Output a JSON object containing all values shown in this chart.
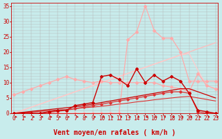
{
  "xlabel": "Vent moyen/en rafales ( km/h )",
  "background_color": "#c8ecec",
  "grid_color": "#b0b0b0",
  "x_labels": [
    "0",
    "1",
    "2",
    "3",
    "4",
    "5",
    "6",
    "7",
    "8",
    "9",
    "10",
    "11",
    "12",
    "13",
    "14",
    "15",
    "16",
    "17",
    "18",
    "19",
    "20",
    "21",
    "22",
    "23"
  ],
  "ylim": [
    0,
    36
  ],
  "xlim": [
    -0.3,
    23.3
  ],
  "yticks": [
    0,
    5,
    10,
    15,
    20,
    25,
    30,
    35
  ],
  "series": [
    {
      "x": [
        0,
        1,
        2,
        3,
        4,
        5,
        6,
        7,
        8,
        9,
        10,
        11,
        12,
        13,
        14,
        15,
        16,
        17,
        18,
        19,
        20,
        21,
        22,
        23
      ],
      "y": [
        0,
        0,
        0,
        0,
        0,
        0,
        0,
        0,
        0,
        0,
        0,
        0,
        0,
        24,
        26.5,
        35,
        27,
        24.5,
        24.5,
        20,
        10.5,
        10.5,
        10.5,
        10.5
      ],
      "color": "#ffaaaa",
      "lw": 0.9,
      "marker": "D",
      "markersize": 2.0,
      "zorder": 2
    },
    {
      "x": [
        0,
        1,
        2,
        3,
        4,
        5,
        6,
        7,
        8,
        9,
        10,
        11,
        12,
        13,
        14,
        15,
        16,
        17,
        18,
        19,
        20,
        21,
        22,
        23
      ],
      "y": [
        0,
        1,
        2,
        3,
        4,
        5,
        6,
        7,
        8,
        9,
        10,
        11,
        12,
        13,
        14,
        15,
        16,
        17,
        18,
        19,
        20,
        21,
        22,
        23
      ],
      "color": "#ffbbbb",
      "lw": 0.9,
      "marker": null,
      "markersize": 0,
      "zorder": 1
    },
    {
      "x": [
        0,
        1,
        2,
        3,
        4,
        5,
        6,
        7,
        8,
        9,
        10,
        11,
        12,
        13,
        14,
        15,
        16,
        17,
        18,
        19,
        20,
        21,
        22,
        23
      ],
      "y": [
        6,
        7,
        8,
        9,
        10,
        11,
        12,
        11,
        10.5,
        10,
        10.5,
        10,
        10,
        10,
        10,
        10,
        10,
        9,
        8.5,
        8,
        7,
        13,
        9,
        8
      ],
      "color": "#ffaaaa",
      "lw": 0.9,
      "marker": "D",
      "markersize": 2.0,
      "zorder": 2
    },
    {
      "x": [
        0,
        1,
        2,
        3,
        4,
        5,
        6,
        7,
        8,
        9,
        10,
        11,
        12,
        13,
        14,
        15,
        16,
        17,
        18,
        19,
        20,
        21,
        22,
        23
      ],
      "y": [
        0,
        1,
        2,
        3,
        4,
        5,
        6,
        7,
        8,
        9,
        10,
        11,
        12,
        13,
        14,
        15,
        16,
        17,
        18,
        19,
        19.5,
        14,
        9,
        8
      ],
      "color": "#ffcccc",
      "lw": 0.9,
      "marker": null,
      "markersize": 0,
      "zorder": 1
    },
    {
      "x": [
        0,
        1,
        2,
        3,
        4,
        5,
        6,
        7,
        8,
        9,
        10,
        11,
        12,
        13,
        14,
        15,
        16,
        17,
        18,
        19,
        20,
        21,
        22,
        23
      ],
      "y": [
        0,
        0,
        0,
        0,
        0.5,
        1,
        1,
        2.5,
        3,
        3.5,
        12,
        12.5,
        11,
        9,
        14.5,
        10,
        12.5,
        10.5,
        12,
        10.5,
        6.5,
        1,
        0.5,
        0
      ],
      "color": "#cc0000",
      "lw": 1.0,
      "marker": "D",
      "markersize": 2.0,
      "zorder": 5
    },
    {
      "x": [
        0,
        1,
        2,
        3,
        4,
        5,
        6,
        7,
        8,
        9,
        10,
        11,
        12,
        13,
        14,
        15,
        16,
        17,
        18,
        19,
        20,
        21,
        22,
        23
      ],
      "y": [
        0,
        0.3,
        0.6,
        0.9,
        1.2,
        1.5,
        1.8,
        2.1,
        2.5,
        3,
        3.5,
        4,
        4.5,
        5,
        5.5,
        6,
        6.5,
        7,
        7.5,
        8,
        8,
        7,
        6,
        5
      ],
      "color": "#cc0000",
      "lw": 0.9,
      "marker": null,
      "markersize": 0,
      "zorder": 4
    },
    {
      "x": [
        0,
        1,
        2,
        3,
        4,
        5,
        6,
        7,
        8,
        9,
        10,
        11,
        12,
        13,
        14,
        15,
        16,
        17,
        18,
        19,
        20,
        21,
        22,
        23
      ],
      "y": [
        0,
        0,
        0,
        0,
        0.3,
        0.6,
        1,
        1.5,
        2,
        2.5,
        3,
        3.5,
        4,
        4.5,
        5,
        5.5,
        6,
        6.5,
        7,
        7,
        6.5,
        0.5,
        0,
        0
      ],
      "color": "#dd3333",
      "lw": 0.9,
      "marker": "D",
      "markersize": 1.8,
      "zorder": 4
    },
    {
      "x": [
        0,
        1,
        2,
        3,
        4,
        5,
        6,
        7,
        8,
        9,
        10,
        11,
        12,
        13,
        14,
        15,
        16,
        17,
        18,
        19,
        20,
        21,
        22,
        23
      ],
      "y": [
        0,
        0.2,
        0.4,
        0.6,
        0.8,
        1.0,
        1.2,
        1.5,
        1.8,
        2,
        2.3,
        2.6,
        3,
        3.3,
        3.7,
        4,
        4.4,
        4.7,
        5,
        5.3,
        5.5,
        5,
        4.5,
        4
      ],
      "color": "#dd3333",
      "lw": 0.8,
      "marker": null,
      "markersize": 0,
      "zorder": 3
    }
  ],
  "arrow_color": "#cc0000",
  "xlabel_color": "#cc0000",
  "tick_color": "#cc0000",
  "label_fontsize": 7,
  "tick_fontsize": 5.5
}
